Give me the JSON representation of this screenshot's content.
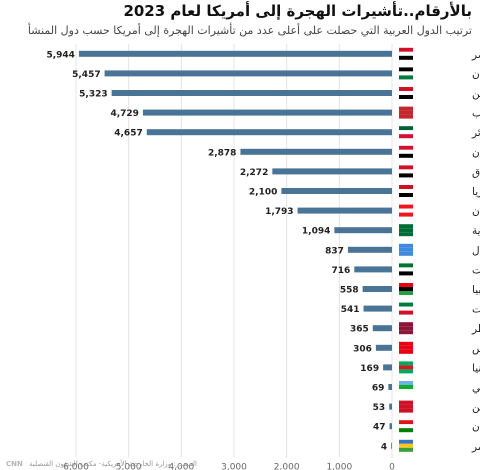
{
  "chart_data": {
    "type": "bar",
    "orientation": "horizontal",
    "title": "بالأرقام..تأشيرات الهجرة إلى أمريكا لعام 2023",
    "subtitle": "ترتيب الدول العربية التي حصلت على أعلى عدد من تأشيرات الهجرة إلى أمريكا حسب دول المنشأ",
    "categories": [
      "مصر",
      "الأردن",
      "اليمن",
      "المغرب",
      "الجزائر",
      "السودان",
      "العراق",
      "سوريا",
      "لبنان",
      "السعودية",
      "الصومال",
      "الإمارات",
      "ليبيا",
      "الكويت",
      "قطر",
      "تونس",
      "موريتانيا",
      "جيبوتي",
      "البحرين",
      "سلطنة عمان",
      "جزر القمر"
    ],
    "values": [
      5944,
      5457,
      5323,
      4729,
      4657,
      2878,
      2272,
      2100,
      1793,
      1094,
      837,
      716,
      558,
      541,
      365,
      306,
      169,
      69,
      53,
      47,
      4
    ],
    "value_labels": [
      "5,944",
      "5,457",
      "5,323",
      "4,729",
      "4,657",
      "2,878",
      "2,272",
      "2,100",
      "1,793",
      "1,094",
      "837",
      "716",
      "558",
      "541",
      "365",
      "306",
      "169",
      "69",
      "53",
      "47",
      "4"
    ],
    "x_ticks": [
      0,
      1000,
      2000,
      3000,
      4000,
      5000,
      6000
    ],
    "x_tick_labels": [
      "0",
      "1,000",
      "2,000",
      "3,000",
      "4,000",
      "5,000",
      "6,000"
    ],
    "xlim": [
      0,
      6000
    ],
    "reversed_axis": true,
    "grid": true,
    "bar_color": "#4a7495",
    "gridline_color": "#e4e4e4"
  },
  "footer": {
    "source": "المصدر: وزارة الخارجية الأمريكية- مكتب الشؤون القنصلية",
    "logo": "CNN"
  }
}
